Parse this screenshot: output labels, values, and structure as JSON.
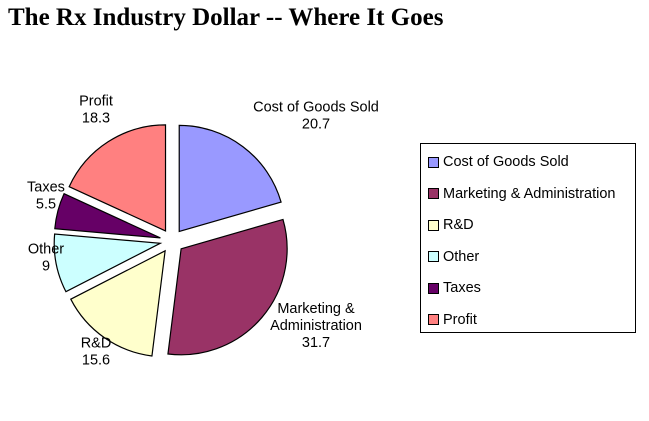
{
  "chart_data": {
    "type": "pie",
    "title": "The Rx Industry Dollar -- Where It Goes",
    "slices": [
      {
        "name": "Cost of Goods Sold",
        "value": 20.7,
        "color": "#9999ff",
        "label_lines": [
          "Cost of Goods Sold",
          "20.7"
        ]
      },
      {
        "name": "Marketing & Administration",
        "value": 31.7,
        "color": "#993366",
        "label_lines": [
          "Marketing &",
          "Administration",
          "31.7"
        ]
      },
      {
        "name": "R&D",
        "value": 15.6,
        "color": "#ffffcc",
        "label_lines": [
          "R&D",
          "15.6"
        ]
      },
      {
        "name": "Other",
        "value": 9,
        "color": "#ccffff",
        "label_lines": [
          "Other",
          "9"
        ]
      },
      {
        "name": "Taxes",
        "value": 5.5,
        "color": "#660066",
        "label_lines": [
          "Taxes",
          "5.5"
        ]
      },
      {
        "name": "Profit",
        "value": 18.3,
        "color": "#ff8080",
        "label_lines": [
          "Profit",
          "18.3"
        ]
      }
    ],
    "exploded": true,
    "start_angle": "12 o'clock",
    "direction": "clockwise",
    "legend": {
      "position": "right",
      "entries": [
        "Cost of Goods Sold",
        "Marketing & Administration",
        "R&D",
        "Other",
        "Taxes",
        "Profit"
      ]
    }
  }
}
